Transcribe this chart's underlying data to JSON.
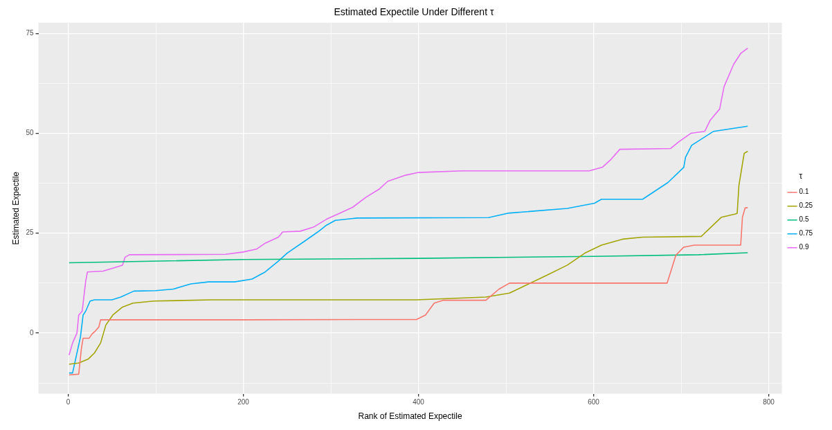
{
  "chart_data": {
    "type": "line",
    "title": "Estimated Expectile Under Different τ",
    "xlabel": "Rank of Estimated Expectile",
    "ylabel": "Estimated Expectile",
    "legend_title": "τ",
    "legend": "right",
    "grid": true,
    "marker": "none",
    "line_style": "solid",
    "xlim": [
      -34,
      815
    ],
    "xticks": [
      0,
      {
        "value": 100,
        "label": null
      },
      200,
      {
        "value": 300,
        "label": null
      },
      400,
      {
        "value": 500,
        "label": null
      },
      600,
      {
        "value": 700,
        "label": null
      },
      800
    ],
    "ylim": [
      -15.2,
      77.7
    ],
    "yticks": [
      {
        "value": -12.5,
        "label": null
      },
      0,
      {
        "value": 12.5,
        "label": null
      },
      25,
      {
        "value": 37.5,
        "label": null
      },
      50,
      {
        "value": 62.5,
        "label": null
      },
      75
    ],
    "series": [
      {
        "name": "0.1",
        "color": "#f8766d",
        "x": [
          1,
          12,
          15,
          17,
          24,
          27,
          31,
          35,
          37,
          200,
          398,
          408,
          418,
          428,
          477,
          492,
          504,
          684,
          689,
          694,
          703,
          715,
          768,
          770,
          773,
          776
        ],
        "values": [
          -10.5,
          -10.3,
          -4,
          -1.3,
          -1.3,
          -0.3,
          0.5,
          1.5,
          3.3,
          3.3,
          3.4,
          4.5,
          7.5,
          8.2,
          8.2,
          11,
          12.5,
          12.5,
          16,
          19.5,
          21.5,
          22,
          22,
          29,
          31.3,
          31.4
        ]
      },
      {
        "name": "0.25",
        "color": "#a3a500",
        "x": [
          1,
          12,
          23,
          30,
          37,
          43,
          51,
          62,
          74,
          98,
          164,
          398,
          477,
          504,
          523,
          547,
          570,
          590,
          609,
          633,
          656,
          723,
          734,
          746,
          762,
          764,
          766,
          772,
          776
        ],
        "values": [
          -7.8,
          -7.5,
          -6.5,
          -5,
          -2.5,
          2,
          4.5,
          6.5,
          7.5,
          8,
          8.3,
          8.3,
          9,
          10,
          12,
          14.5,
          17,
          20,
          22,
          23.5,
          24,
          24.2,
          26.5,
          29,
          29.8,
          30,
          37,
          45,
          45.5
        ]
      },
      {
        "name": "0.5",
        "color": "#00bf7d",
        "x": [
          1,
          200,
          400,
          600,
          720,
          776
        ],
        "values": [
          17.6,
          18.4,
          18.7,
          19.2,
          19.6,
          20.1
        ]
      },
      {
        "name": "0.75",
        "color": "#00b0f6",
        "x": [
          1,
          5,
          10,
          14,
          17,
          20,
          25,
          30,
          50,
          60,
          75,
          100,
          120,
          140,
          160,
          190,
          210,
          225,
          240,
          250,
          270,
          285,
          295,
          305,
          330,
          480,
          502,
          570,
          601,
          609,
          656,
          685,
          703,
          705,
          712,
          737,
          776
        ],
        "values": [
          -10,
          -10,
          -5,
          -1,
          4.5,
          5.5,
          8,
          8.3,
          8.3,
          9,
          10.5,
          10.6,
          11,
          12.3,
          12.8,
          12.8,
          13.5,
          15.3,
          18,
          20,
          23,
          25.3,
          27,
          28.2,
          28.8,
          28.9,
          30,
          31.2,
          32.5,
          33.5,
          33.5,
          37.7,
          41.5,
          44,
          47,
          50.5,
          51.8
        ]
      },
      {
        "name": "0.9",
        "color": "#e76bf3",
        "x": [
          1,
          5,
          10,
          12,
          16,
          20,
          22,
          40,
          55,
          62,
          65,
          70,
          180,
          200,
          215,
          225,
          240,
          245,
          265,
          280,
          295,
          310,
          325,
          340,
          355,
          365,
          385,
          400,
          450,
          595,
          610,
          620,
          630,
          688,
          698,
          711,
          727,
          733,
          744,
          749,
          760,
          768,
          776
        ],
        "values": [
          -5.5,
          -2.5,
          0,
          4.5,
          5.5,
          13,
          15.3,
          15.5,
          16.5,
          17,
          19,
          19.6,
          19.7,
          20.3,
          21,
          22.5,
          24,
          25.3,
          25.5,
          26.5,
          28.5,
          30,
          31.5,
          34,
          36,
          38,
          39.5,
          40.2,
          40.6,
          40.6,
          41.5,
          43.5,
          46,
          46.2,
          48,
          50,
          50.5,
          53.2,
          56.1,
          61.7,
          67.3,
          70,
          71.3
        ]
      }
    ]
  }
}
